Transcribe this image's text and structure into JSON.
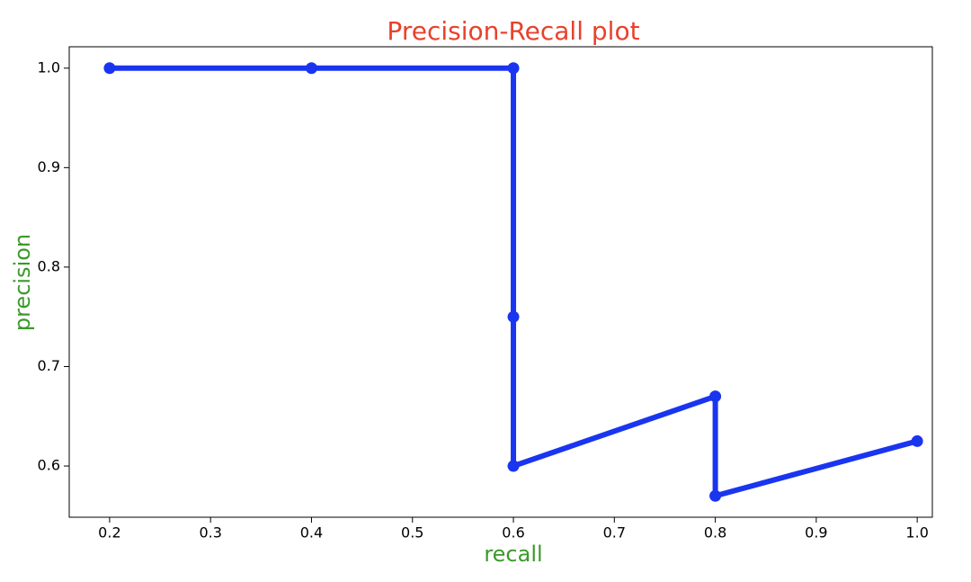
{
  "chart_data": {
    "type": "line",
    "title": "Precision-Recall plot",
    "x_label": "recall",
    "y_label": "precision",
    "x": [
      0.2,
      0.4,
      0.6,
      0.6,
      0.6,
      0.8,
      0.8,
      1.0
    ],
    "series": [
      {
        "color": "#1a35f0",
        "values": [
          1.0,
          1.0,
          1.0,
          0.75,
          0.6,
          0.67,
          0.57,
          0.625
        ]
      }
    ],
    "xlim": [
      0.16,
      1.015
    ],
    "ylim": [
      0.5485,
      1.0215
    ],
    "xticks": [
      0.2,
      0.3,
      0.4,
      0.5,
      0.6,
      0.7,
      0.8,
      0.9,
      {
        "value": 1.0,
        "label": "1.0"
      }
    ],
    "yticks": [
      0.6,
      0.7,
      0.8,
      0.9,
      {
        "value": 1.0,
        "label": "1.0"
      }
    ],
    "title_color": "#e8412c",
    "label_color": "#3a9a2a",
    "grid": false,
    "markers": true
  }
}
